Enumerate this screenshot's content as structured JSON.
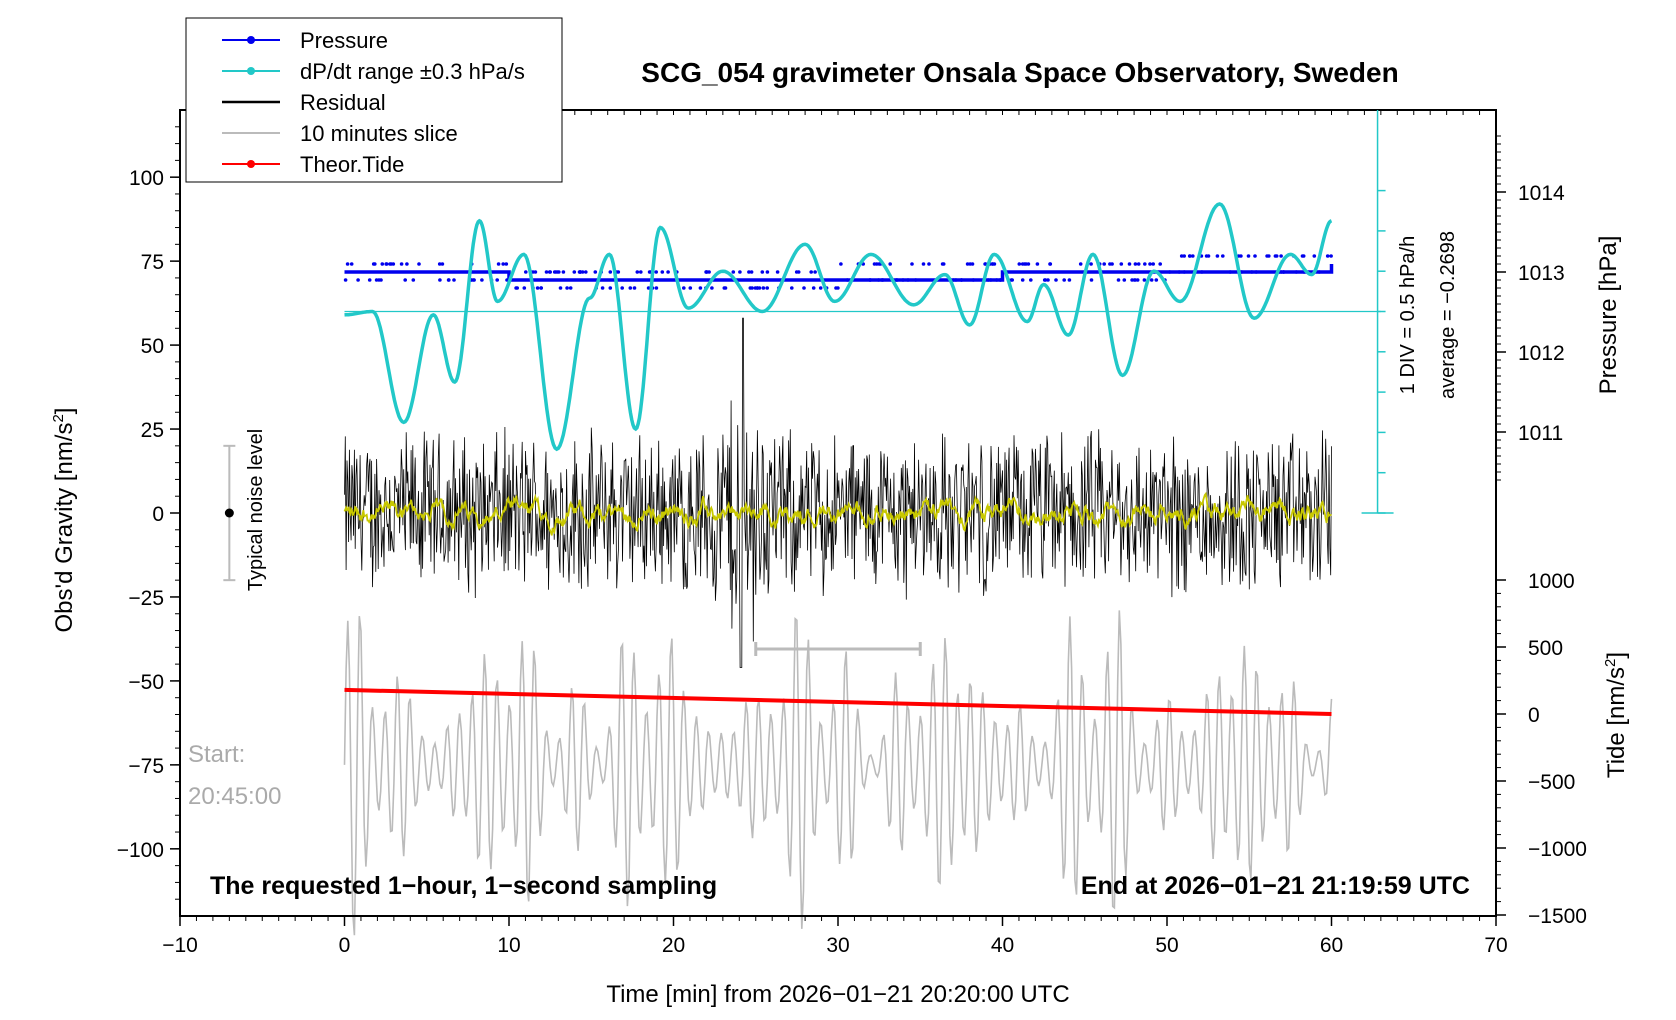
{
  "chart_data": {
    "type": "line",
    "title": "SCG_054 gravimeter Onsala Space Observatory, Sweden",
    "xlabel": "Time [min] from 2026−01−21 20:20:00 UTC",
    "xlim": [
      -10,
      70
    ],
    "xticks": [
      "−10",
      "0",
      "10",
      "20",
      "30",
      "40",
      "50",
      "60",
      "70"
    ],
    "left_axis": {
      "label": "Obs'd Gravity [nm/s",
      "label_sup": "2",
      "label_end": "]",
      "ylim": [
        -120,
        120
      ],
      "ticks": [
        "100",
        "75",
        "50",
        "25",
        "0",
        "−25",
        "−50",
        "−75",
        "−100"
      ]
    },
    "right_axis_pressure": {
      "label": "Pressure [hPa]",
      "ticks": [
        "1014",
        "1013",
        "1012",
        "1011"
      ]
    },
    "right_axis_tide": {
      "label": "Tide [nm/s",
      "label_sup": "2",
      "label_end": "]",
      "ticks": [
        "1000",
        "500",
        "0",
        "−500",
        "−1000",
        "−1500"
      ]
    },
    "legend": {
      "placement": "top-left",
      "entries": [
        {
          "label": "Pressure",
          "color": "#0000ee",
          "marker": true
        },
        {
          "label": "dP/dt range ±0.3 hPa/s",
          "color": "#22c8c8",
          "marker": true
        },
        {
          "label": "Residual",
          "color": "#000000",
          "marker": false
        },
        {
          "label": "10 minutes slice",
          "color": "#bbbbbb",
          "marker": false
        },
        {
          "label": "Theor.Tide",
          "color": "#ff0000",
          "marker": true
        }
      ]
    },
    "annotations": {
      "div_label": "1 DIV = 0.5 hPa/h",
      "average_label": "average = −0.2698",
      "noise_label": "Typical noise level",
      "start_label": "Start:",
      "start_time": "20:45:00",
      "bottom_left": "The requested 1−hour, 1−second sampling",
      "bottom_right": "End at 2026−01−21 21:19:59 UTC"
    },
    "series": [
      {
        "name": "Pressure",
        "unit": "hPa",
        "approx": "near-constant ~1012.9–1013.1 hPa over 0–60 min",
        "x": [
          0,
          10,
          20,
          30,
          40,
          50,
          60
        ],
        "values": [
          1013.0,
          1012.9,
          1012.9,
          1012.9,
          1013.0,
          1013.0,
          1013.1
        ]
      },
      {
        "name": "dP/dt range ±0.3 hPa/s",
        "unit": "nm/s2 (plotted on gravity axis)",
        "x": [
          0,
          1.7,
          3.6,
          5.4,
          6.7,
          8.2,
          9.3,
          10.9,
          12.9,
          14.9,
          16.1,
          17.7,
          19.2,
          20.9,
          23.0,
          25.4,
          28.0,
          29.8,
          32.0,
          34.6,
          36.5,
          38.0,
          39.5,
          41.5,
          42.5,
          44.0,
          45.5,
          47.3,
          49.2,
          50.8,
          53.2,
          55.3,
          57.5,
          58.8,
          60.0
        ],
        "values": [
          59,
          60,
          27,
          59,
          39,
          87,
          63,
          77,
          19,
          64,
          77,
          25,
          85,
          61,
          72,
          60,
          80,
          63,
          77,
          62,
          71,
          56,
          77,
          57,
          68,
          53,
          77,
          41,
          72,
          63,
          92,
          58,
          77,
          71,
          87
        ]
      },
      {
        "name": "Residual",
        "unit": "nm/s2",
        "approx": "noise spanning roughly −35 to +35 nm/s2, peak ~58 near t≈24 min"
      },
      {
        "name": "10 minutes slice",
        "unit": "nm/s2",
        "approx": "oscillation centred near −75 nm/s2, amplitude ~45"
      },
      {
        "name": "Theor.Tide",
        "unit": "nm/s2",
        "x": [
          0,
          60
        ],
        "values": [
          180,
          0
        ]
      }
    ]
  }
}
